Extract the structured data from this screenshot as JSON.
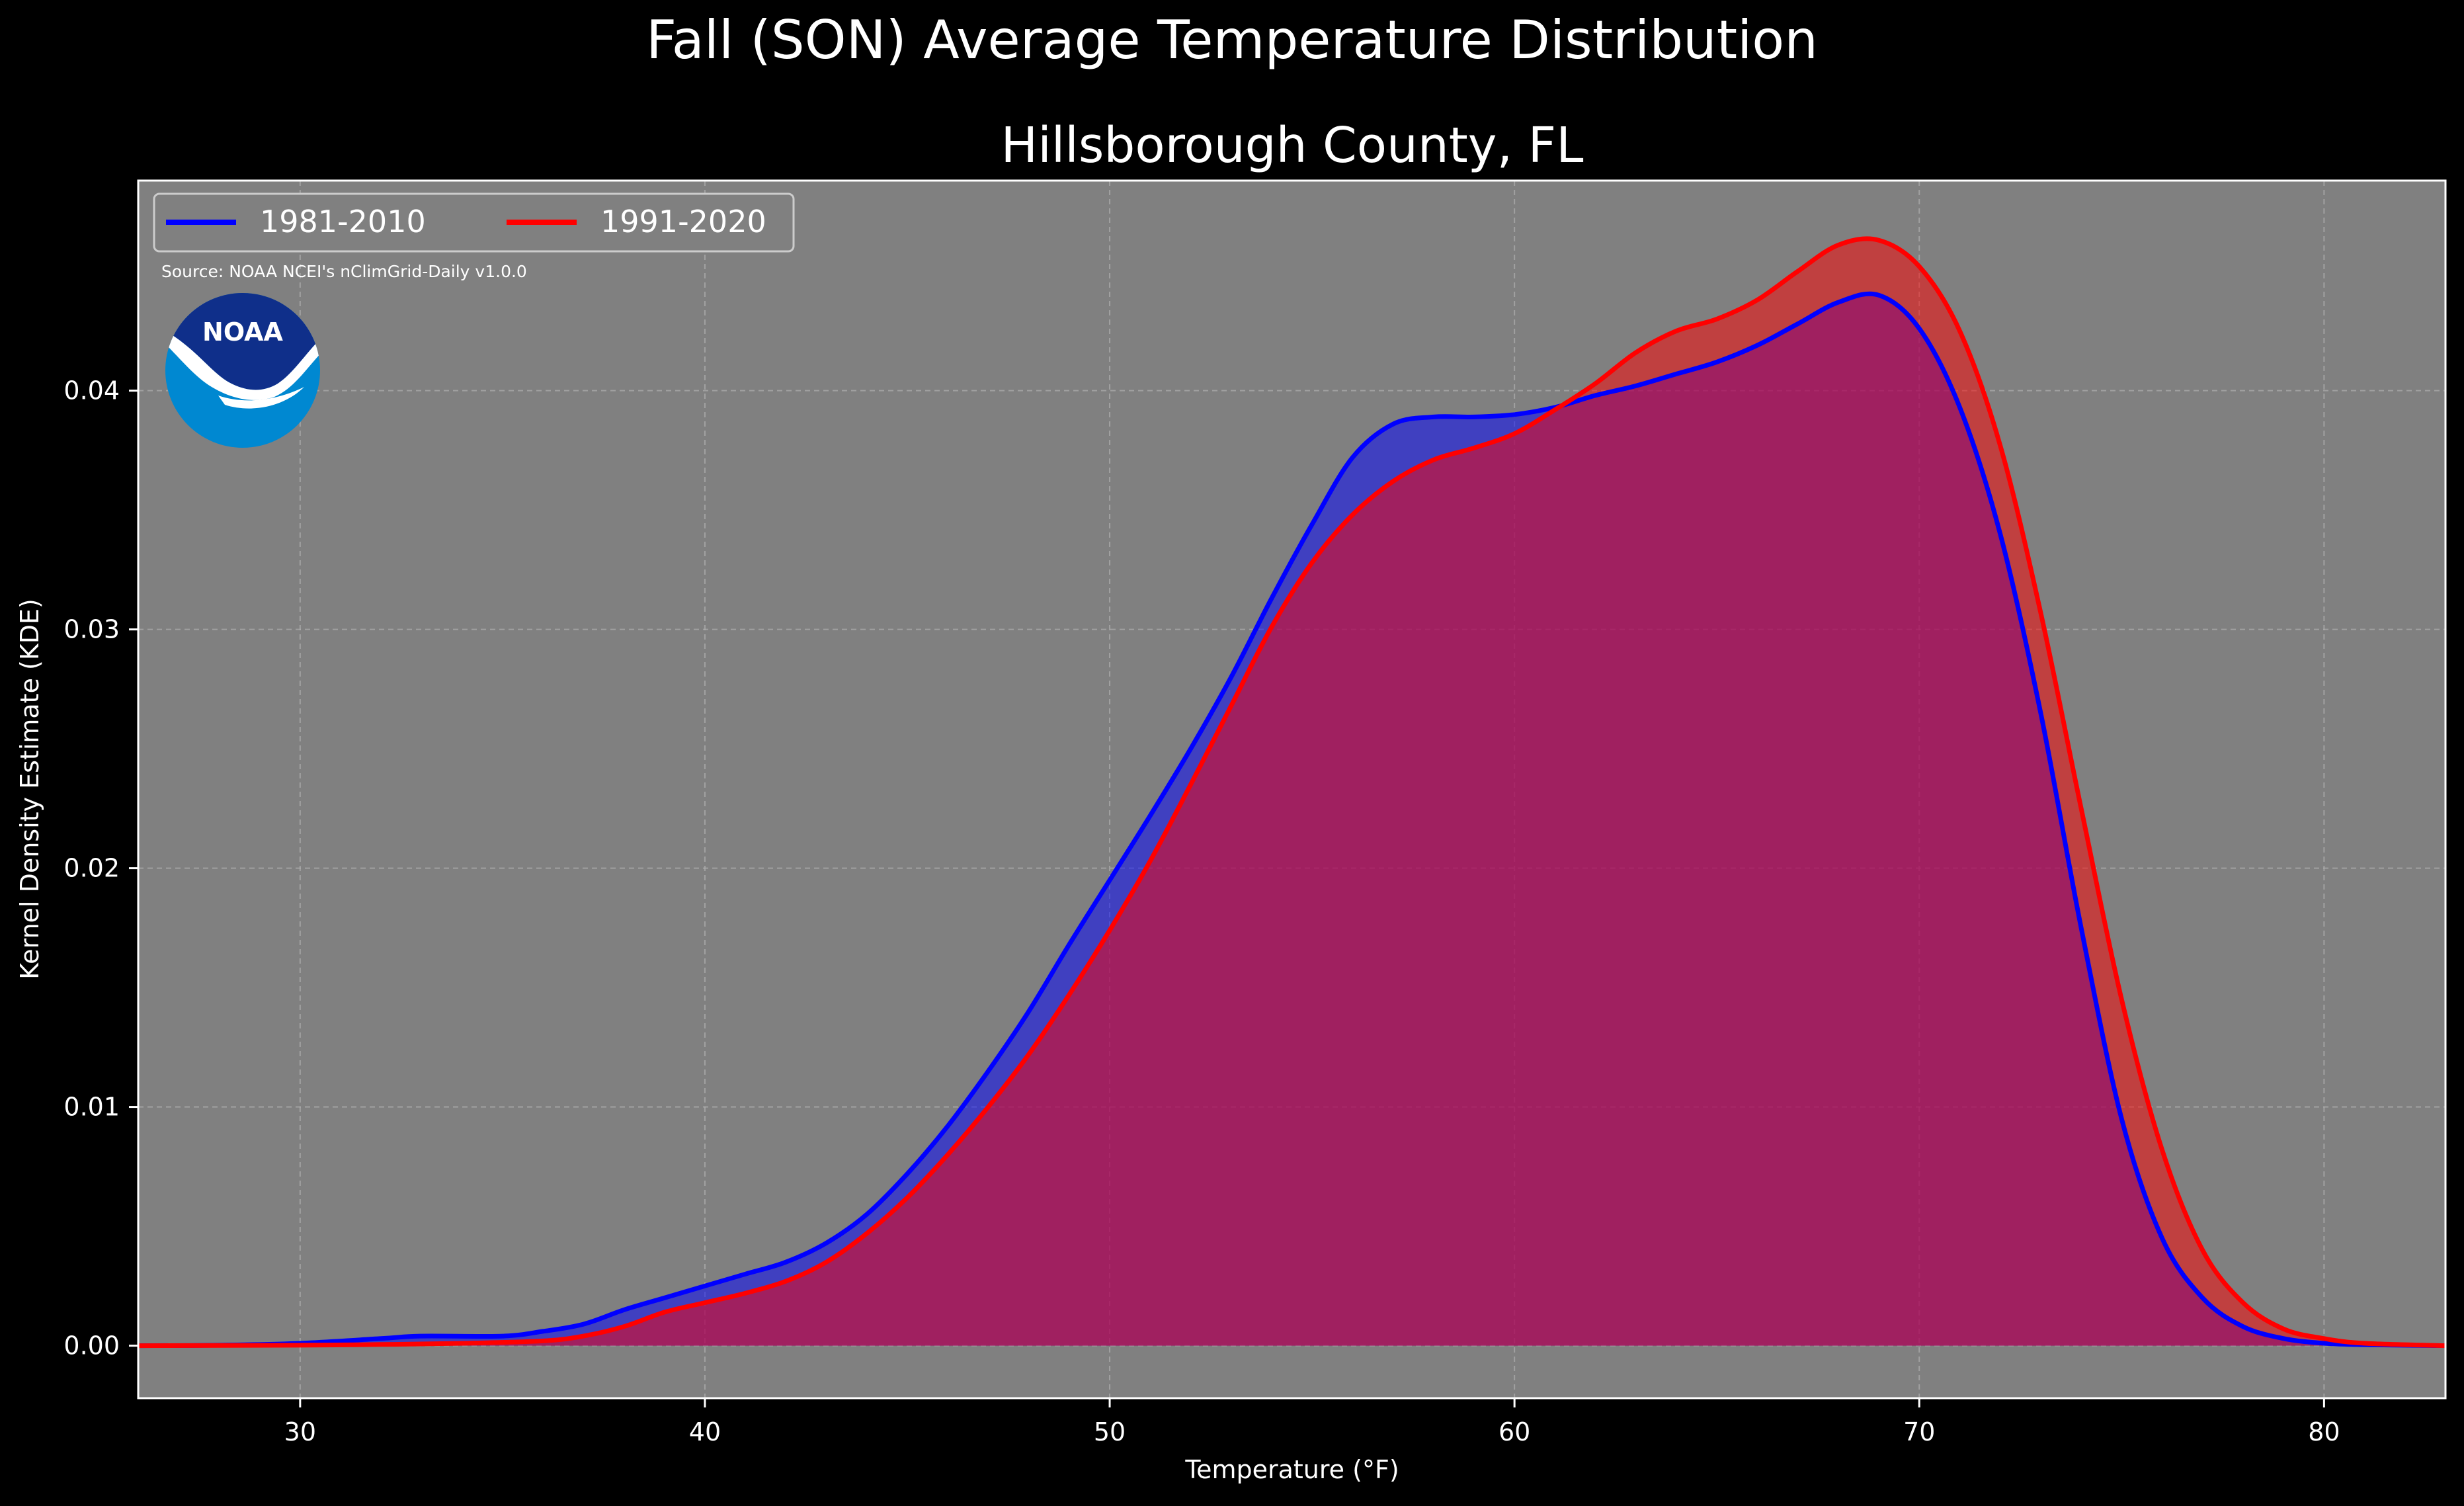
{
  "chart_data": {
    "type": "area",
    "title": "Fall (SON) Average Temperature Distribution",
    "subtitle": "Hillsborough County, FL",
    "xlabel": "Temperature (°F)",
    "ylabel": "Kernel Density Estimate (KDE)",
    "source": "Source: NOAA NCEI's nClimGrid-Daily v1.0.0",
    "logo_text": "NOAA",
    "xlim": [
      26,
      83
    ],
    "ylim": [
      -0.0022,
      0.0488
    ],
    "xticks": [
      30,
      40,
      50,
      60,
      70,
      80
    ],
    "yticks": [
      0.0,
      0.01,
      0.02,
      0.03,
      0.04
    ],
    "ytick_labels": [
      "0.00",
      "0.01",
      "0.02",
      "0.03",
      "0.04"
    ],
    "grid": true,
    "legend_position": "top-left",
    "series": [
      {
        "name": "1981-2010",
        "color": "#0000ff",
        "points": [
          [
            26,
            0
          ],
          [
            28,
            2e-05
          ],
          [
            30,
            0.0001
          ],
          [
            32,
            0.0003
          ],
          [
            33,
            0.0004
          ],
          [
            35,
            0.0004
          ],
          [
            36,
            0.0006
          ],
          [
            37,
            0.0009
          ],
          [
            38,
            0.0015
          ],
          [
            39,
            0.002
          ],
          [
            40,
            0.0025
          ],
          [
            41,
            0.003
          ],
          [
            42,
            0.0035
          ],
          [
            43,
            0.0043
          ],
          [
            44,
            0.0055
          ],
          [
            45,
            0.0072
          ],
          [
            46,
            0.0092
          ],
          [
            47,
            0.0115
          ],
          [
            48,
            0.014
          ],
          [
            49,
            0.0168
          ],
          [
            50,
            0.0195
          ],
          [
            51,
            0.0222
          ],
          [
            52,
            0.025
          ],
          [
            53,
            0.028
          ],
          [
            54,
            0.0313
          ],
          [
            55,
            0.0344
          ],
          [
            56,
            0.0372
          ],
          [
            57,
            0.0386
          ],
          [
            58,
            0.0389
          ],
          [
            59,
            0.0389
          ],
          [
            60,
            0.039
          ],
          [
            61,
            0.0393
          ],
          [
            62,
            0.0398
          ],
          [
            63,
            0.0402
          ],
          [
            64,
            0.0407
          ],
          [
            65,
            0.0412
          ],
          [
            66,
            0.0419
          ],
          [
            67,
            0.0428
          ],
          [
            68,
            0.0437
          ],
          [
            69,
            0.044
          ],
          [
            70,
            0.0426
          ],
          [
            71,
            0.0393
          ],
          [
            72,
            0.034
          ],
          [
            73,
            0.0265
          ],
          [
            74,
            0.0175
          ],
          [
            75,
            0.0095
          ],
          [
            76,
            0.0045
          ],
          [
            77,
            0.002
          ],
          [
            78,
            0.0008
          ],
          [
            79,
            0.0003
          ],
          [
            80,
            0.0001
          ],
          [
            81,
            4e-05
          ],
          [
            83,
            0
          ]
        ]
      },
      {
        "name": "1991-2020",
        "color": "#ff0000",
        "points": [
          [
            26,
            0
          ],
          [
            30,
            2e-05
          ],
          [
            32,
            5e-05
          ],
          [
            34,
            0.0001
          ],
          [
            36,
            0.0002
          ],
          [
            37,
            0.0004
          ],
          [
            38,
            0.0008
          ],
          [
            39,
            0.0014
          ],
          [
            40,
            0.0018
          ],
          [
            41,
            0.0022
          ],
          [
            42,
            0.0027
          ],
          [
            43,
            0.0035
          ],
          [
            44,
            0.0047
          ],
          [
            45,
            0.0062
          ],
          [
            46,
            0.008
          ],
          [
            47,
            0.01
          ],
          [
            48,
            0.0122
          ],
          [
            49,
            0.0147
          ],
          [
            50,
            0.0174
          ],
          [
            51,
            0.0203
          ],
          [
            52,
            0.0235
          ],
          [
            53,
            0.0268
          ],
          [
            54,
            0.0301
          ],
          [
            55,
            0.0328
          ],
          [
            56,
            0.0348
          ],
          [
            57,
            0.0362
          ],
          [
            58,
            0.0371
          ],
          [
            59,
            0.0376
          ],
          [
            60,
            0.0382
          ],
          [
            61,
            0.0392
          ],
          [
            62,
            0.0403
          ],
          [
            63,
            0.0416
          ],
          [
            64,
            0.0425
          ],
          [
            65,
            0.043
          ],
          [
            66,
            0.0438
          ],
          [
            67,
            0.045
          ],
          [
            68,
            0.0461
          ],
          [
            69,
            0.0463
          ],
          [
            70,
            0.0452
          ],
          [
            71,
            0.0425
          ],
          [
            72,
            0.0377
          ],
          [
            73,
            0.0307
          ],
          [
            74,
            0.0225
          ],
          [
            75,
            0.0145
          ],
          [
            76,
            0.0082
          ],
          [
            77,
            0.004
          ],
          [
            78,
            0.0018
          ],
          [
            79,
            0.0007
          ],
          [
            80,
            0.0003
          ],
          [
            81,
            0.0001
          ],
          [
            83,
            0
          ]
        ]
      }
    ]
  }
}
